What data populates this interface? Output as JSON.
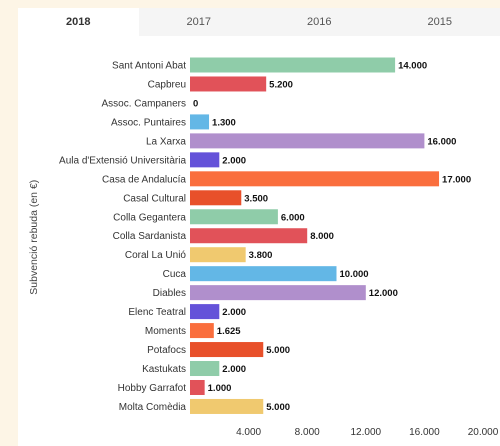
{
  "tabs": [
    {
      "label": "2018",
      "active": true
    },
    {
      "label": "2017",
      "active": false
    },
    {
      "label": "2016",
      "active": false
    },
    {
      "label": "2015",
      "active": false
    }
  ],
  "chart_data": {
    "type": "bar",
    "orientation": "horizontal",
    "title": "",
    "xlabel": "",
    "ylabel": "Subvenció rebuda (en €)",
    "xlim": [
      0,
      20000
    ],
    "xticks": [
      4000,
      8000,
      12000,
      16000,
      20000
    ],
    "xtick_labels": [
      "4.000",
      "8.000",
      "12.000",
      "16.000",
      "20.000"
    ],
    "grid": false,
    "categories": [
      "Sant Antoni Abat",
      "Capbreu",
      "Assoc. Campaners",
      "Assoc. Puntaires",
      "La Xarxa",
      "Aula d'Extensió Universitària",
      "Casa de Andalucía",
      "Casal Cultural",
      "Colla Gegantera",
      "Colla Sardanista",
      "Coral La Unió",
      "Cuca",
      "Diables",
      "Elenc Teatral",
      "Moments",
      "Potafocs",
      "Kastukats",
      "Hobby Garrafot",
      "Molta Comèdia"
    ],
    "values": [
      14000,
      5200,
      0,
      1300,
      16000,
      2000,
      17000,
      3500,
      6000,
      8000,
      3800,
      10000,
      12000,
      2000,
      1625,
      5000,
      2000,
      1000,
      5000
    ],
    "value_labels": [
      "14.000",
      "5.200",
      "0",
      "1.300",
      "16.000",
      "2.000",
      "17.000",
      "3.500",
      "6.000",
      "8.000",
      "3.800",
      "10.000",
      "12.000",
      "2.000",
      "1.625",
      "5.000",
      "2.000",
      "1.000",
      "5.000"
    ],
    "colors": [
      "#8fcca9",
      "#e15259",
      "#f0c96f",
      "#63b7e6",
      "#b08fcc",
      "#6452d9",
      "#fa6e3d",
      "#e8502a",
      "#8fcca9",
      "#e15259",
      "#f0c96f",
      "#63b7e6",
      "#b08fcc",
      "#6452d9",
      "#fa6e3d",
      "#e8502a",
      "#8fcca9",
      "#e15259",
      "#f0c96f"
    ]
  }
}
